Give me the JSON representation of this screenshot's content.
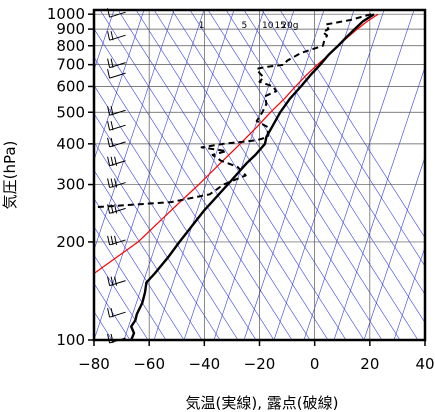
{
  "chart_data": {
    "type": "line",
    "title": "",
    "xlabel": "気温(実線), 露点(破線)",
    "ylabel": "気圧(hPa)",
    "xlim": [
      -80,
      40
    ],
    "ylim": [
      1030,
      100
    ],
    "y_scale": "log",
    "x_ticks": [
      -80,
      -60,
      -40,
      -20,
      0,
      20,
      40
    ],
    "x_tick_labels": [
      "−80",
      "−60",
      "−40",
      "−20",
      "0",
      "20",
      "40"
    ],
    "y_ticks": [
      1000,
      900,
      800,
      700,
      600,
      500,
      400,
      300,
      200,
      100
    ],
    "y_tick_labels": [
      "1000",
      "900",
      "800",
      "700",
      "600",
      "500",
      "400",
      "300",
      "200",
      "100"
    ],
    "mixing_ratio_labels": [
      "1",
      "5",
      "10",
      "15",
      "20g"
    ],
    "grid": true,
    "colors": {
      "temperature": "#000000",
      "dewpoint": "#000000",
      "reference": "#ff0000",
      "adiabats": "#3a44dd",
      "grid": "#555555",
      "wind_barbs": "#000000"
    },
    "series": [
      {
        "role": "temperature",
        "style": "solid",
        "points": [
          {
            "p": 1000,
            "t": 21.5
          },
          {
            "p": 950,
            "t": 17.5
          },
          {
            "p": 900,
            "t": 14.5
          },
          {
            "p": 850,
            "t": 11.5
          },
          {
            "p": 800,
            "t": 8.5
          },
          {
            "p": 750,
            "t": 5.0
          },
          {
            "p": 700,
            "t": 2.0
          },
          {
            "p": 650,
            "t": -1.5
          },
          {
            "p": 600,
            "t": -5.0
          },
          {
            "p": 550,
            "t": -9.0
          },
          {
            "p": 500,
            "t": -12.5
          },
          {
            "p": 450,
            "t": -15.5
          },
          {
            "p": 420,
            "t": -17.5
          },
          {
            "p": 400,
            "t": -18.0
          },
          {
            "p": 370,
            "t": -21.5
          },
          {
            "p": 350,
            "t": -24.5
          },
          {
            "p": 300,
            "t": -31.5
          },
          {
            "p": 250,
            "t": -40.0
          },
          {
            "p": 200,
            "t": -49.0
          },
          {
            "p": 180,
            "t": -53.0
          },
          {
            "p": 160,
            "t": -58.0
          },
          {
            "p": 150,
            "t": -61.0
          },
          {
            "p": 140,
            "t": -61.5
          },
          {
            "p": 130,
            "t": -62.5
          },
          {
            "p": 120,
            "t": -64.5
          },
          {
            "p": 115,
            "t": -65.0
          },
          {
            "p": 110,
            "t": -66.5
          },
          {
            "p": 105,
            "t": -65.5
          },
          {
            "p": 100,
            "t": -66.5
          }
        ]
      },
      {
        "role": "dewpoint",
        "style": "dashed",
        "points": [
          {
            "p": 1000,
            "t": 20.5
          },
          {
            "p": 960,
            "t": 13.0
          },
          {
            "p": 930,
            "t": 4.0
          },
          {
            "p": 900,
            "t": 5.0
          },
          {
            "p": 880,
            "t": 3.0
          },
          {
            "p": 860,
            "t": 4.5
          },
          {
            "p": 830,
            "t": 3.5
          },
          {
            "p": 800,
            "t": 3.0
          },
          {
            "p": 760,
            "t": -5.0
          },
          {
            "p": 720,
            "t": -10.0
          },
          {
            "p": 700,
            "t": -11.0
          },
          {
            "p": 690,
            "t": -17.0
          },
          {
            "p": 680,
            "t": -21.0
          },
          {
            "p": 660,
            "t": -20.0
          },
          {
            "p": 640,
            "t": -18.5
          },
          {
            "p": 620,
            "t": -20.0
          },
          {
            "p": 600,
            "t": -15.0
          },
          {
            "p": 580,
            "t": -14.0
          },
          {
            "p": 560,
            "t": -18.0
          },
          {
            "p": 530,
            "t": -17.5
          },
          {
            "p": 500,
            "t": -19.0
          },
          {
            "p": 470,
            "t": -21.0
          },
          {
            "p": 450,
            "t": -17.0
          },
          {
            "p": 420,
            "t": -17.0
          },
          {
            "p": 410,
            "t": -21.0
          },
          {
            "p": 400,
            "t": -33.0
          },
          {
            "p": 390,
            "t": -41.0
          },
          {
            "p": 380,
            "t": -32.0
          },
          {
            "p": 370,
            "t": -37.0
          },
          {
            "p": 355,
            "t": -34.0
          },
          {
            "p": 340,
            "t": -28.0
          },
          {
            "p": 320,
            "t": -25.0
          },
          {
            "p": 300,
            "t": -33.0
          },
          {
            "p": 280,
            "t": -38.0
          },
          {
            "p": 265,
            "t": -52.0
          },
          {
            "p": 255,
            "t": -81.0
          }
        ]
      },
      {
        "role": "reference",
        "style": "solid-red",
        "points": [
          {
            "p": 1000,
            "t": 23.0
          },
          {
            "p": 950,
            "t": 19.0
          },
          {
            "p": 900,
            "t": 15.5
          },
          {
            "p": 850,
            "t": 12.0
          },
          {
            "p": 800,
            "t": 8.5
          },
          {
            "p": 750,
            "t": 5.0
          },
          {
            "p": 700,
            "t": 1.0
          },
          {
            "p": 650,
            "t": -3.0
          },
          {
            "p": 600,
            "t": -7.0
          },
          {
            "p": 550,
            "t": -11.0
          },
          {
            "p": 500,
            "t": -16.0
          },
          {
            "p": 450,
            "t": -21.0
          },
          {
            "p": 400,
            "t": -27.0
          },
          {
            "p": 350,
            "t": -34.0
          },
          {
            "p": 300,
            "t": -42.0
          },
          {
            "p": 250,
            "t": -52.0
          },
          {
            "p": 200,
            "t": -64.0
          },
          {
            "p": 160,
            "t": -80.0
          }
        ]
      }
    ],
    "wind_barbs": {
      "x_position_temp": -70,
      "levels": [
        {
          "p": 1000,
          "barbs": 1
        },
        {
          "p": 850,
          "barbs": 2
        },
        {
          "p": 700,
          "barbs": 2
        },
        {
          "p": 650,
          "barbs": 1
        },
        {
          "p": 500,
          "barbs": 2
        },
        {
          "p": 450,
          "barbs": 2
        },
        {
          "p": 400,
          "barbs": 2
        },
        {
          "p": 350,
          "barbs": 3
        },
        {
          "p": 300,
          "barbs": 3
        },
        {
          "p": 250,
          "barbs": 3
        },
        {
          "p": 200,
          "barbs": 3
        },
        {
          "p": 150,
          "barbs": 3
        },
        {
          "p": 120,
          "barbs": 2
        },
        {
          "p": 100,
          "barbs": 2
        }
      ]
    }
  }
}
